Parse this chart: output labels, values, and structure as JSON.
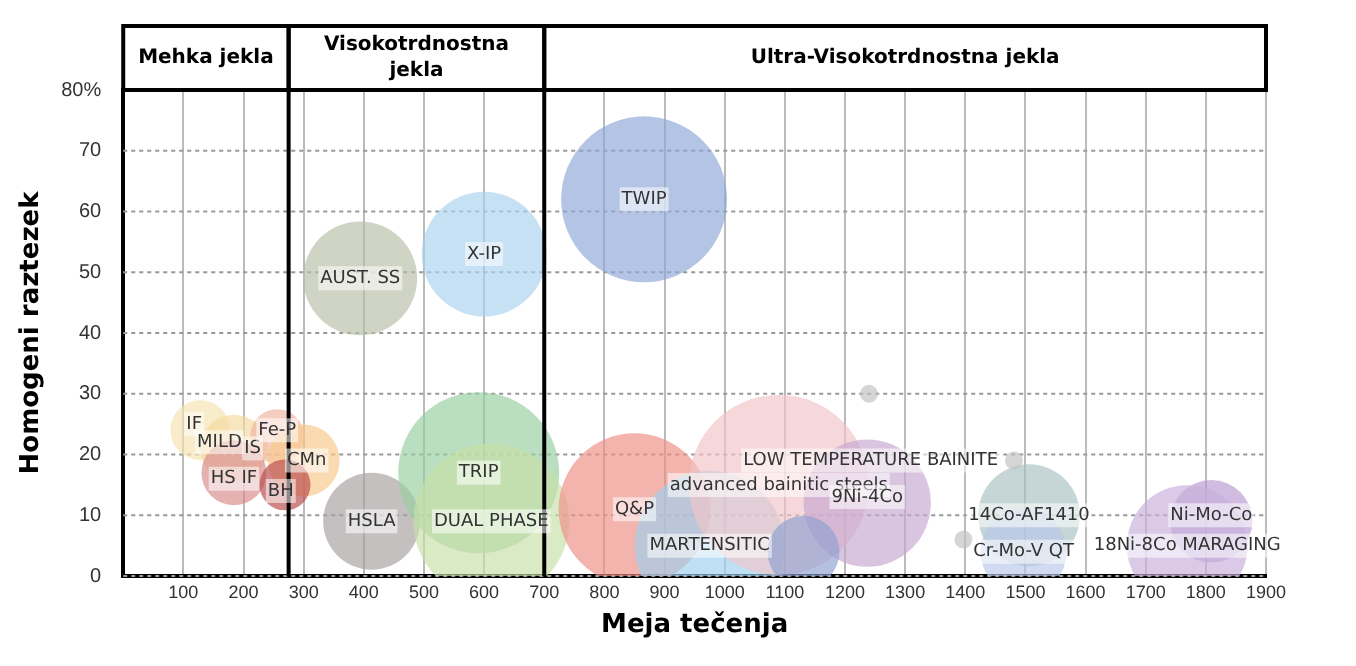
{
  "chart_data": {
    "type": "bubble",
    "xlabel": "Meja tečenja",
    "ylabel": "Homogeni raztezek",
    "x": [
      866,
      600,
      394,
      128,
      184,
      256,
      300,
      184,
      269,
      413,
      591,
      612,
      850,
      975,
      1090,
      1237,
      1506,
      1497,
      1809,
      1769,
      1131,
      1240,
      1481,
      1397
    ],
    "values": [
      62,
      53,
      49,
      24,
      21,
      23,
      19,
      17,
      15,
      9,
      17,
      9,
      11,
      5,
      15,
      12,
      10,
      4,
      9,
      5,
      4,
      30,
      19,
      6
    ],
    "sizes": [
      0.85,
      0.48,
      0.4,
      0.11,
      0.14,
      0.09,
      0.16,
      0.13,
      0.08,
      0.29,
      0.8,
      0.75,
      0.71,
      0.69,
      1,
      0.5,
      0.32,
      0.23,
      0.21,
      0.45,
      0.16,
      0.01,
      0.01,
      0.01
    ],
    "colors": [
      "#8fa6d6",
      "#a9d0ef",
      "#b9bfa6",
      "#f5e3b0",
      "#f3d9a0",
      "#f2b6a0",
      "#f7c98a",
      "#d88a8a",
      "#b84a4a",
      "#a8a0a0",
      "#98cfa0",
      "#c7e0a8",
      "#ef8f86",
      "#9fd0ee",
      "#f2c4c8",
      "#c8a8d0",
      "#a9c0c0",
      "#b8c8e8",
      "#b89ad0",
      "#c8b0dc",
      "#8fa0d0",
      "#c0c0c0",
      "#c0c0c0",
      "#c0c0c0"
    ],
    "xlim": [
      0,
      1900
    ],
    "xticks": [
      100,
      200,
      300,
      400,
      500,
      600,
      700,
      800,
      900,
      1000,
      1100,
      1200,
      1300,
      1400,
      1500,
      1600,
      1700,
      1800,
      1900
    ],
    "ylim": [
      0,
      80
    ],
    "yticks": [
      0,
      10,
      20,
      30,
      40,
      50,
      60,
      70,
      {
        "value": 80,
        "label": "80%"
      }
    ],
    "grid": true,
    "ref_lines": [
      {
        "axis": "x",
        "value": 275
      },
      {
        "axis": "x",
        "value": 700
      }
    ],
    "annotations": [
      "Mehka jekla",
      "Visokotrdnostna jekla",
      "Ultra-Visokotrdnostna jekla",
      {
        "text": "TWIP",
        "x": 866,
        "y": 62
      },
      {
        "text": "X-IP",
        "x": 600,
        "y": 53
      },
      {
        "text": "AUST. SS",
        "x": 394,
        "y": 49
      },
      {
        "text": "IF",
        "x": 118,
        "y": 25
      },
      {
        "text": "MILD",
        "x": 160,
        "y": 22
      },
      {
        "text": "IS",
        "x": 215,
        "y": 21
      },
      {
        "text": "Fe-P",
        "x": 256,
        "y": 24
      },
      {
        "text": "CMn",
        "x": 305,
        "y": 19
      },
      {
        "text": "HS IF",
        "x": 184,
        "y": 16
      },
      {
        "text": "BH",
        "x": 262,
        "y": 14
      },
      {
        "text": "HSLA",
        "x": 413,
        "y": 9
      },
      {
        "text": "TRIP",
        "x": 591,
        "y": 17
      },
      {
        "text": "DUAL PHASE",
        "x": 612,
        "y": 9
      },
      {
        "text": "Q&P",
        "x": 850,
        "y": 11
      },
      {
        "text": "MARTENSITIC",
        "x": 975,
        "y": 5
      },
      {
        "text": "advanced bainitic steels",
        "x": 1090,
        "y": 15
      },
      {
        "text": "9Ni-4Co",
        "x": 1237,
        "y": 13
      },
      {
        "text": "LOW TEMPERATURE BAINITE",
        "x": 1481,
        "y": 19
      },
      {
        "text": "14Co-AF1410",
        "x": 1506,
        "y": 10
      },
      {
        "text": "Cr-Mo-V QT",
        "x": 1497,
        "y": 4
      },
      {
        "text": "Ni-Mo-Co",
        "x": 1809,
        "y": 10
      },
      {
        "text": "18Ni-8Co MARAGING",
        "x": 1769,
        "y": 5
      }
    ]
  }
}
